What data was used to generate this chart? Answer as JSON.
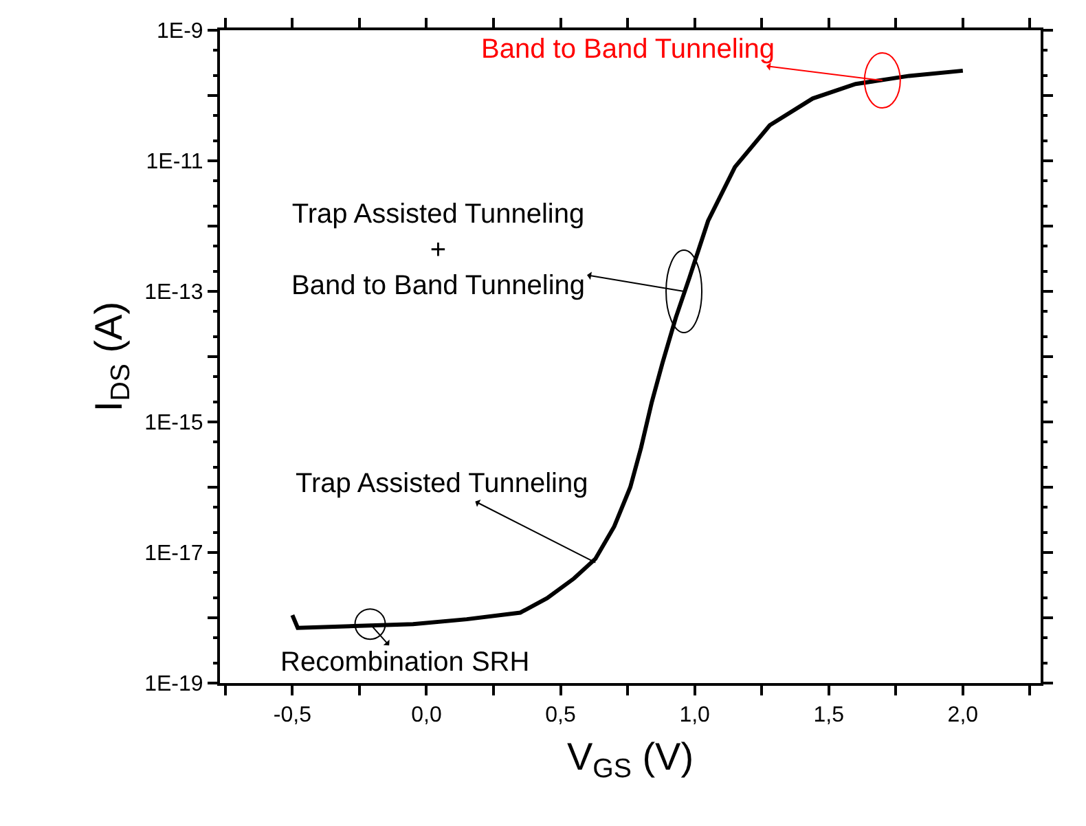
{
  "chart_data": {
    "type": "line",
    "xlabel": "V$_{GS}$ (V)",
    "ylabel": "I$_{DS}$ (A)",
    "log": "y",
    "marker": "none",
    "line_style": "solid",
    "x": [
      -0.5,
      -0.48,
      -0.25,
      -0.05,
      0.15,
      0.35,
      0.45,
      0.55,
      0.63,
      0.7,
      0.76,
      0.8,
      0.84,
      0.88,
      0.93,
      0.98,
      1.05,
      1.15,
      1.28,
      1.44,
      1.6,
      1.8,
      2.0
    ],
    "series": [
      {
        "color": "#000000",
        "values": [
          1.1e-18,
          7e-19,
          7.5e-19,
          8e-19,
          9.5e-19,
          1.2e-18,
          2e-18,
          4e-18,
          8e-18,
          2.5e-17,
          1e-16,
          4e-16,
          2e-15,
          8e-15,
          4e-14,
          1.6e-13,
          1.2e-12,
          8e-12,
          3.5e-11,
          9e-11,
          1.5e-10,
          2e-10,
          2.4e-10
        ]
      }
    ],
    "xlim": [
      -0.77,
      2.29
    ],
    "ylim": [
      1e-19,
      1e-09
    ],
    "xticks": [
      {
        "value": -0.75,
        "label": null
      },
      {
        "value": -0.5,
        "label": "-0,5"
      },
      {
        "value": -0.25,
        "label": null
      },
      {
        "value": 0,
        "label": "0,0"
      },
      {
        "value": 0.25,
        "label": null
      },
      {
        "value": 0.5,
        "label": "0,5"
      },
      {
        "value": 0.75,
        "label": null
      },
      {
        "value": 1,
        "label": "1,0"
      },
      {
        "value": 1.25,
        "label": null
      },
      {
        "value": 1.5,
        "label": "1,5"
      },
      {
        "value": 1.75,
        "label": null
      },
      {
        "value": 2,
        "label": "2,0"
      },
      {
        "value": 2.25,
        "label": null
      }
    ],
    "yticks": [
      {
        "value": 1e-19,
        "label": "1E-19"
      },
      {
        "value": 1e-18,
        "label": null
      },
      {
        "value": 1e-17,
        "label": "1E-17"
      },
      {
        "value": 1e-16,
        "label": null
      },
      {
        "value": 1e-15,
        "label": "1E-15"
      },
      {
        "value": 1e-14,
        "label": null
      },
      {
        "value": 1e-13,
        "label": "1E-13"
      },
      {
        "value": 1e-12,
        "label": null
      },
      {
        "value": 1e-11,
        "label": "1E-11"
      },
      {
        "value": 1e-10,
        "label": null
      },
      {
        "value": 1e-09,
        "label": "1E-9"
      }
    ],
    "annotations": [
      {
        "text": "Band to Band Tunneling",
        "x": 1.7,
        "y": 1.7e-10
      },
      {
        "text": "Trap Assisted Tunneling\n+\nBand to Band Tunneling",
        "x": 0.96,
        "y": 1e-13
      },
      {
        "text": "Trap Assisted Tunneling",
        "x": 0.63,
        "y": 7e-18
      },
      {
        "text": "Recombination SRH",
        "x": -0.21,
        "y": 8e-19
      }
    ]
  }
}
